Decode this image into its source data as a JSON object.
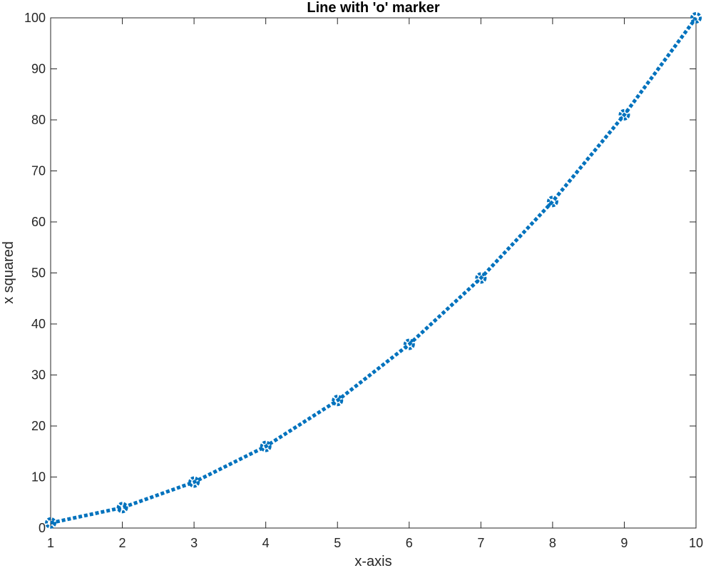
{
  "chart_data": {
    "type": "line",
    "title": "Line with 'o' marker",
    "xlabel": "x-axis",
    "ylabel": "x squared",
    "xlim": [
      1,
      10
    ],
    "ylim": [
      0,
      100
    ],
    "xticks": [
      1,
      2,
      3,
      4,
      5,
      6,
      7,
      8,
      9,
      10
    ],
    "yticks": [
      0,
      10,
      20,
      30,
      40,
      50,
      60,
      70,
      80,
      90,
      100
    ],
    "grid": false,
    "series": [
      {
        "color": "#0072BD",
        "line_style": "dotted",
        "marker": "o",
        "x": [
          1,
          2,
          3,
          4,
          5,
          6,
          7,
          8,
          9,
          10
        ],
        "y": [
          1,
          4,
          9,
          16,
          25,
          36,
          49,
          64,
          81,
          100
        ]
      }
    ]
  }
}
